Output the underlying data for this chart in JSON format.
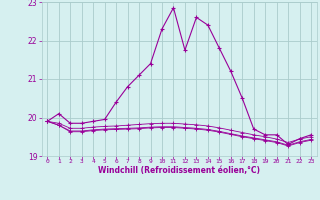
{
  "hours": [
    0,
    1,
    2,
    3,
    4,
    5,
    6,
    7,
    8,
    9,
    10,
    11,
    12,
    13,
    14,
    15,
    16,
    17,
    18,
    19,
    20,
    21,
    22,
    23
  ],
  "line1": [
    19.9,
    20.1,
    19.85,
    19.85,
    19.9,
    19.95,
    20.4,
    20.8,
    21.1,
    21.4,
    22.3,
    22.85,
    21.75,
    22.6,
    22.4,
    21.8,
    21.2,
    20.5,
    19.7,
    19.55,
    19.55,
    19.3,
    19.45,
    19.55
  ],
  "line2": [
    19.9,
    19.85,
    19.72,
    19.72,
    19.75,
    19.77,
    19.78,
    19.8,
    19.82,
    19.84,
    19.85,
    19.85,
    19.83,
    19.81,
    19.78,
    19.73,
    19.67,
    19.61,
    19.55,
    19.5,
    19.44,
    19.35,
    19.44,
    19.5
  ],
  "line3": [
    19.9,
    19.8,
    19.65,
    19.65,
    19.68,
    19.7,
    19.71,
    19.72,
    19.73,
    19.75,
    19.76,
    19.76,
    19.74,
    19.72,
    19.69,
    19.64,
    19.58,
    19.52,
    19.47,
    19.42,
    19.37,
    19.28,
    19.37,
    19.43
  ],
  "line4": [
    19.9,
    19.8,
    19.63,
    19.63,
    19.66,
    19.68,
    19.69,
    19.7,
    19.71,
    19.73,
    19.74,
    19.74,
    19.72,
    19.7,
    19.67,
    19.62,
    19.56,
    19.5,
    19.45,
    19.4,
    19.35,
    19.26,
    19.35,
    19.41
  ],
  "line_color": "#990099",
  "bg_color": "#d6f0f0",
  "grid_color": "#aacccc",
  "ylim": [
    19.0,
    23.0
  ],
  "yticks": [
    19,
    20,
    21,
    22,
    23
  ],
  "xlabel": "Windchill (Refroidissement éolien,°C)",
  "xtick_labels": [
    "0",
    "1",
    "2",
    "3",
    "4",
    "5",
    "6",
    "7",
    "8",
    "9",
    "10",
    "11",
    "12",
    "13",
    "14",
    "15",
    "16",
    "17",
    "18",
    "19",
    "20",
    "21",
    "22",
    "23"
  ]
}
